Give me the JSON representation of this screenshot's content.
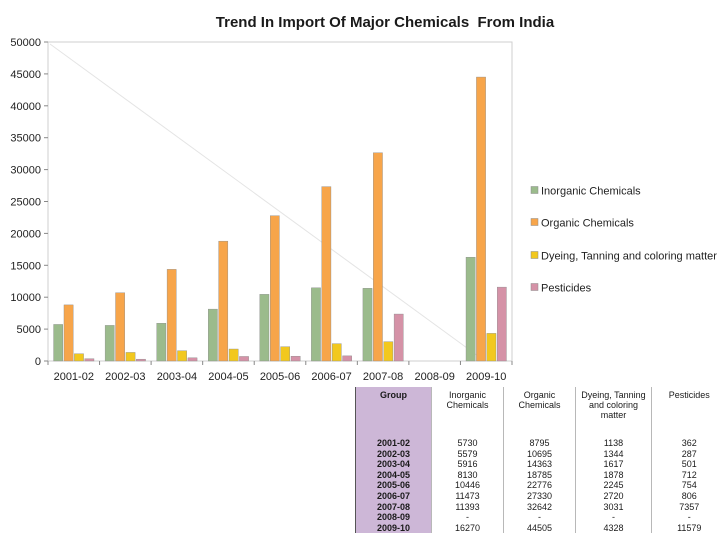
{
  "chart_data": {
    "type": "bar",
    "title": "Trend In Import Of Major Chemicals  From India",
    "categories": [
      "2001-02",
      "2002-03",
      "2003-04",
      "2004-05",
      "2005-06",
      "2006-07",
      "2007-08",
      "2008-09",
      "2009-10"
    ],
    "series": [
      {
        "name": "Inorganic Chemicals",
        "values": [
          5730,
          5579,
          5916,
          8130,
          10446,
          11473,
          11393,
          null,
          16270
        ],
        "color": "#9bbb8c"
      },
      {
        "name": "Organic Chemicals",
        "values": [
          8795,
          10695,
          14363,
          18785,
          22776,
          27330,
          32642,
          null,
          44505
        ],
        "color": "#f7a54a"
      },
      {
        "name": "Dyeing, Tanning and coloring matter",
        "values": [
          1138,
          1344,
          1617,
          1878,
          2245,
          2720,
          3031,
          null,
          4328
        ],
        "color": "#f2c81e"
      },
      {
        "name": "Pesticides",
        "values": [
          362,
          287,
          501,
          712,
          754,
          806,
          7357,
          null,
          11579
        ],
        "color": "#d592a7"
      }
    ],
    "ylim": [
      0,
      50000
    ],
    "yticks": [
      0,
      5000,
      10000,
      15000,
      20000,
      25000,
      30000,
      35000,
      40000,
      45000,
      50000
    ],
    "legend_position": "right"
  },
  "table": {
    "headers": [
      "Group",
      "Inorganic Chemicals",
      "Organic Chemicals",
      "Dyeing, Tanning and coloring matter",
      "Pesticides"
    ],
    "rows": [
      [
        "2001-02",
        "5730",
        "8795",
        "1138",
        "362"
      ],
      [
        "2002-03",
        "5579",
        "10695",
        "1344",
        "287"
      ],
      [
        "2003-04",
        "5916",
        "14363",
        "1617",
        "501"
      ],
      [
        "2004-05",
        "8130",
        "18785",
        "1878",
        "712"
      ],
      [
        "2005-06",
        "10446",
        "22776",
        "2245",
        "754"
      ],
      [
        "2006-07",
        "11473",
        "27330",
        "2720",
        "806"
      ],
      [
        "2007-08",
        "11393",
        "32642",
        "3031",
        "7357"
      ],
      [
        "2008-09",
        "-",
        "-",
        "-",
        "-"
      ],
      [
        "2009-10",
        "16270",
        "44505",
        "4328",
        "11579"
      ]
    ]
  }
}
